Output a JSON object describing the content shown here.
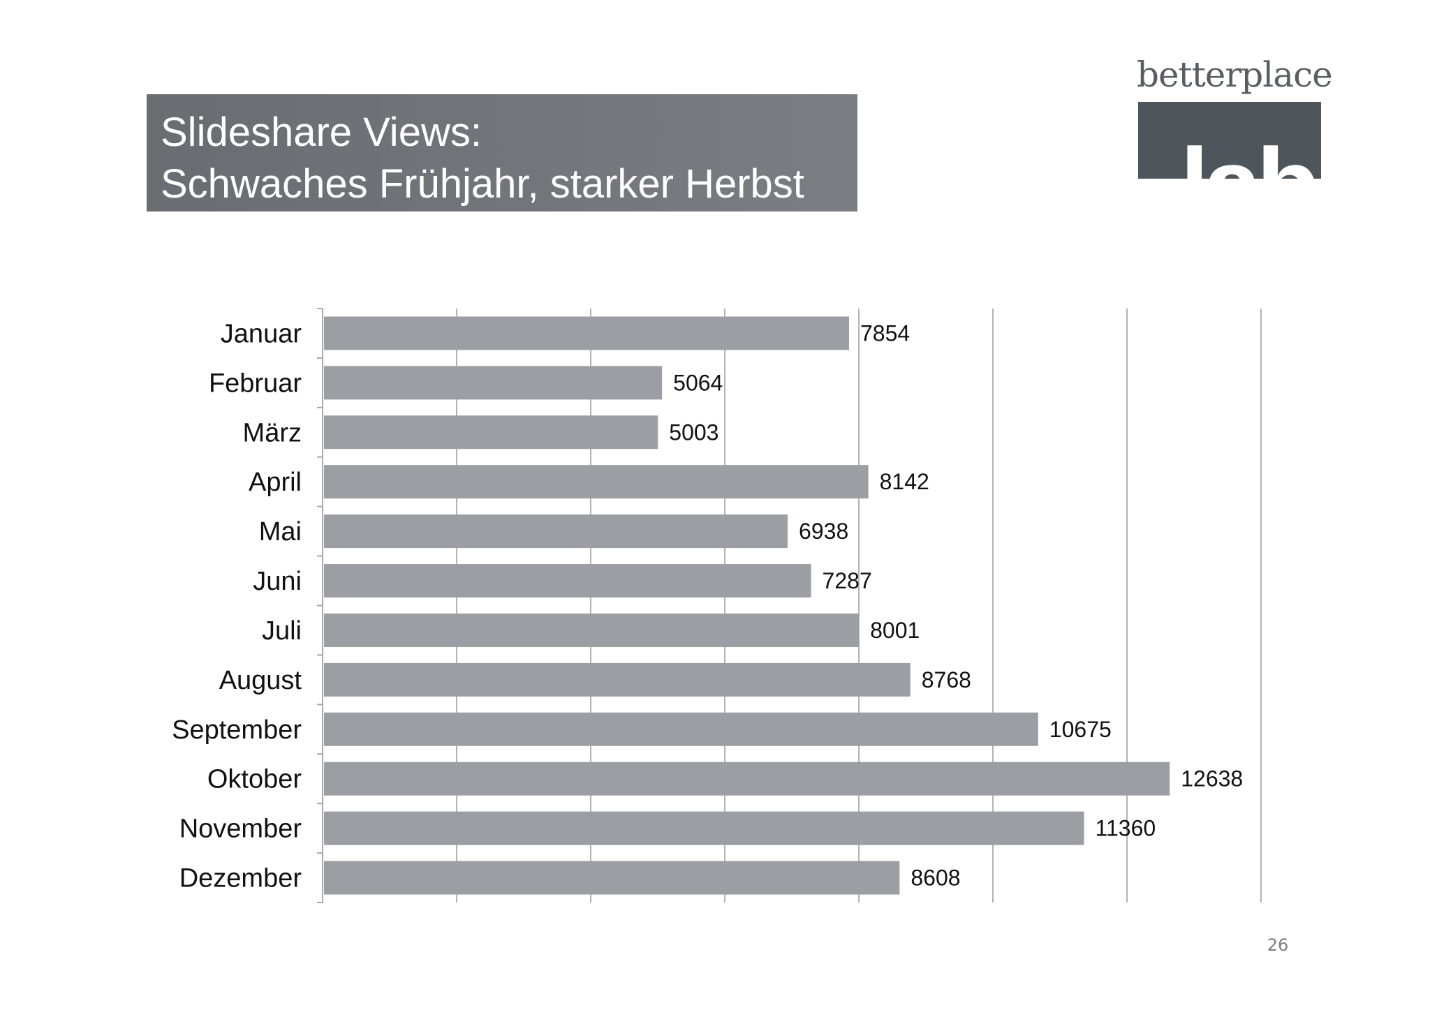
{
  "slide": {
    "title_line1": "Slideshare Views:",
    "title_line2": "Schwaches Frühjahr, starker Herbst",
    "page_number": "26",
    "logo": {
      "word": "betterplace",
      "block_text": "lab"
    },
    "colors": {
      "title_bg": "#74787c",
      "bar": "#9b9fa3",
      "logo_block": "#4f565b"
    }
  },
  "chart_data": {
    "type": "bar",
    "orientation": "horizontal",
    "categories": [
      "Januar",
      "Februar",
      "März",
      "April",
      "Mai",
      "Juni",
      "Juli",
      "August",
      "September",
      "Oktober",
      "November",
      "Dezember"
    ],
    "values": [
      7854,
      5064,
      5003,
      8142,
      6938,
      7287,
      8001,
      8768,
      10675,
      12638,
      11360,
      8608
    ],
    "xlim": [
      0,
      14000
    ],
    "grid": "vertical",
    "data_labels": true,
    "legend": "none"
  }
}
